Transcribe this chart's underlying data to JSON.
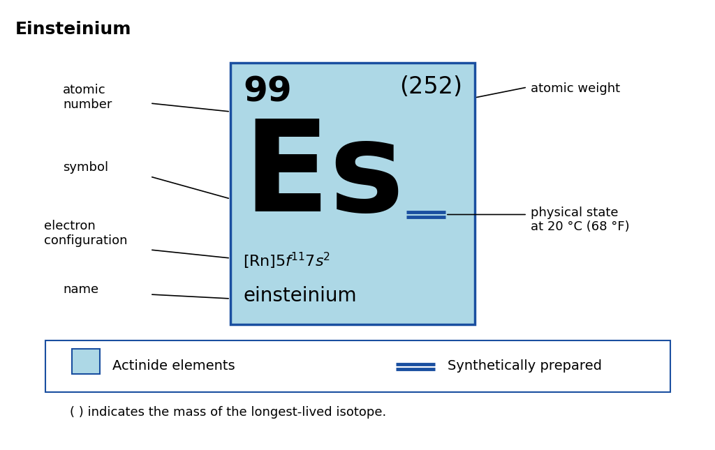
{
  "title": "Einsteinium",
  "title_fontsize": 18,
  "title_fontweight": "bold",
  "bg_color": "#ffffff",
  "card_bg_color": "#add8e6",
  "card_border_color": "#1a4fa0",
  "card_border_lw": 2.5,
  "atomic_number": "99",
  "atomic_weight": "(252)",
  "name": "einsteinium",
  "label_atomic_number": "atomic\nnumber",
  "label_symbol": "symbol",
  "label_electron_config": "electron\nconfiguration",
  "label_name": "name",
  "label_atomic_weight": "atomic weight",
  "label_physical_state": "physical state\nat 20 °C (68 °F)",
  "legend_border_color": "#1a4fa0",
  "legend_border_lw": 1.5,
  "footnote": "( ) indicates the mass of the longest-lived isotope.",
  "line_color": "#000000",
  "double_line_color": "#1a4fa0"
}
